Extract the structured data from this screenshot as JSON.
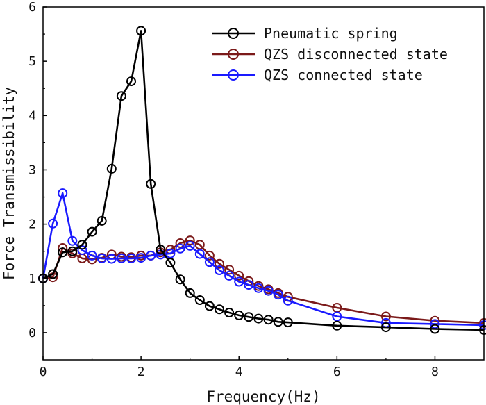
{
  "chart_data": {
    "type": "line",
    "xlabel": "Frequency(Hz)",
    "ylabel": "Force Transmissibility",
    "xlim": [
      0,
      9
    ],
    "ylim": [
      -0.5,
      6
    ],
    "xticks": [
      0,
      2,
      4,
      6,
      8
    ],
    "yticks": [
      0,
      1,
      2,
      3,
      4,
      5,
      6
    ],
    "grid": false,
    "legend_position": "top-right",
    "series": [
      {
        "name": "Pneumatic spring",
        "color": "#000000",
        "marker": "open-circle",
        "x": [
          0,
          0.2,
          0.4,
          0.6,
          0.8,
          1.0,
          1.2,
          1.4,
          1.6,
          1.8,
          2.0,
          2.2,
          2.4,
          2.6,
          2.8,
          3.0,
          3.2,
          3.4,
          3.6,
          3.8,
          4.0,
          4.2,
          4.4,
          4.6,
          4.8,
          5.0,
          6.0,
          7.0,
          8.0,
          9.0
        ],
        "y": [
          1.0,
          1.08,
          1.48,
          1.5,
          1.62,
          1.86,
          2.06,
          3.02,
          4.36,
          4.63,
          5.56,
          2.74,
          1.53,
          1.29,
          0.98,
          0.73,
          0.6,
          0.49,
          0.43,
          0.37,
          0.32,
          0.29,
          0.26,
          0.24,
          0.2,
          0.19,
          0.13,
          0.1,
          0.07,
          0.05
        ]
      },
      {
        "name": "QZS disconnected state",
        "color": "#7b1a1a",
        "marker": "open-circle",
        "x": [
          0,
          0.2,
          0.4,
          0.6,
          0.8,
          1.0,
          1.2,
          1.4,
          1.6,
          1.8,
          2.0,
          2.2,
          2.4,
          2.6,
          2.8,
          3.0,
          3.2,
          3.4,
          3.6,
          3.8,
          4.0,
          4.2,
          4.4,
          4.6,
          4.8,
          5.0,
          6.0,
          7.0,
          8.0,
          9.0
        ],
        "y": [
          1.0,
          1.02,
          1.56,
          1.46,
          1.37,
          1.35,
          1.38,
          1.44,
          1.4,
          1.39,
          1.42,
          1.42,
          1.48,
          1.53,
          1.65,
          1.7,
          1.62,
          1.42,
          1.27,
          1.16,
          1.05,
          0.95,
          0.86,
          0.8,
          0.73,
          0.66,
          0.46,
          0.3,
          0.22,
          0.18
        ]
      },
      {
        "name": "QZS connected state",
        "color": "#1a1aff",
        "marker": "open-circle",
        "x": [
          0,
          0.2,
          0.4,
          0.6,
          0.8,
          1.0,
          1.2,
          1.4,
          1.6,
          1.8,
          2.0,
          2.2,
          2.4,
          2.6,
          2.8,
          3.0,
          3.2,
          3.4,
          3.6,
          3.8,
          4.0,
          4.2,
          4.4,
          4.6,
          4.8,
          5.0,
          6.0,
          7.0,
          8.0,
          9.0
        ],
        "y": [
          1.0,
          2.01,
          2.57,
          1.69,
          1.52,
          1.42,
          1.37,
          1.36,
          1.37,
          1.37,
          1.38,
          1.42,
          1.44,
          1.46,
          1.55,
          1.6,
          1.45,
          1.3,
          1.15,
          1.05,
          0.94,
          0.88,
          0.82,
          0.77,
          0.7,
          0.59,
          0.3,
          0.18,
          0.16,
          0.14
        ]
      }
    ]
  }
}
